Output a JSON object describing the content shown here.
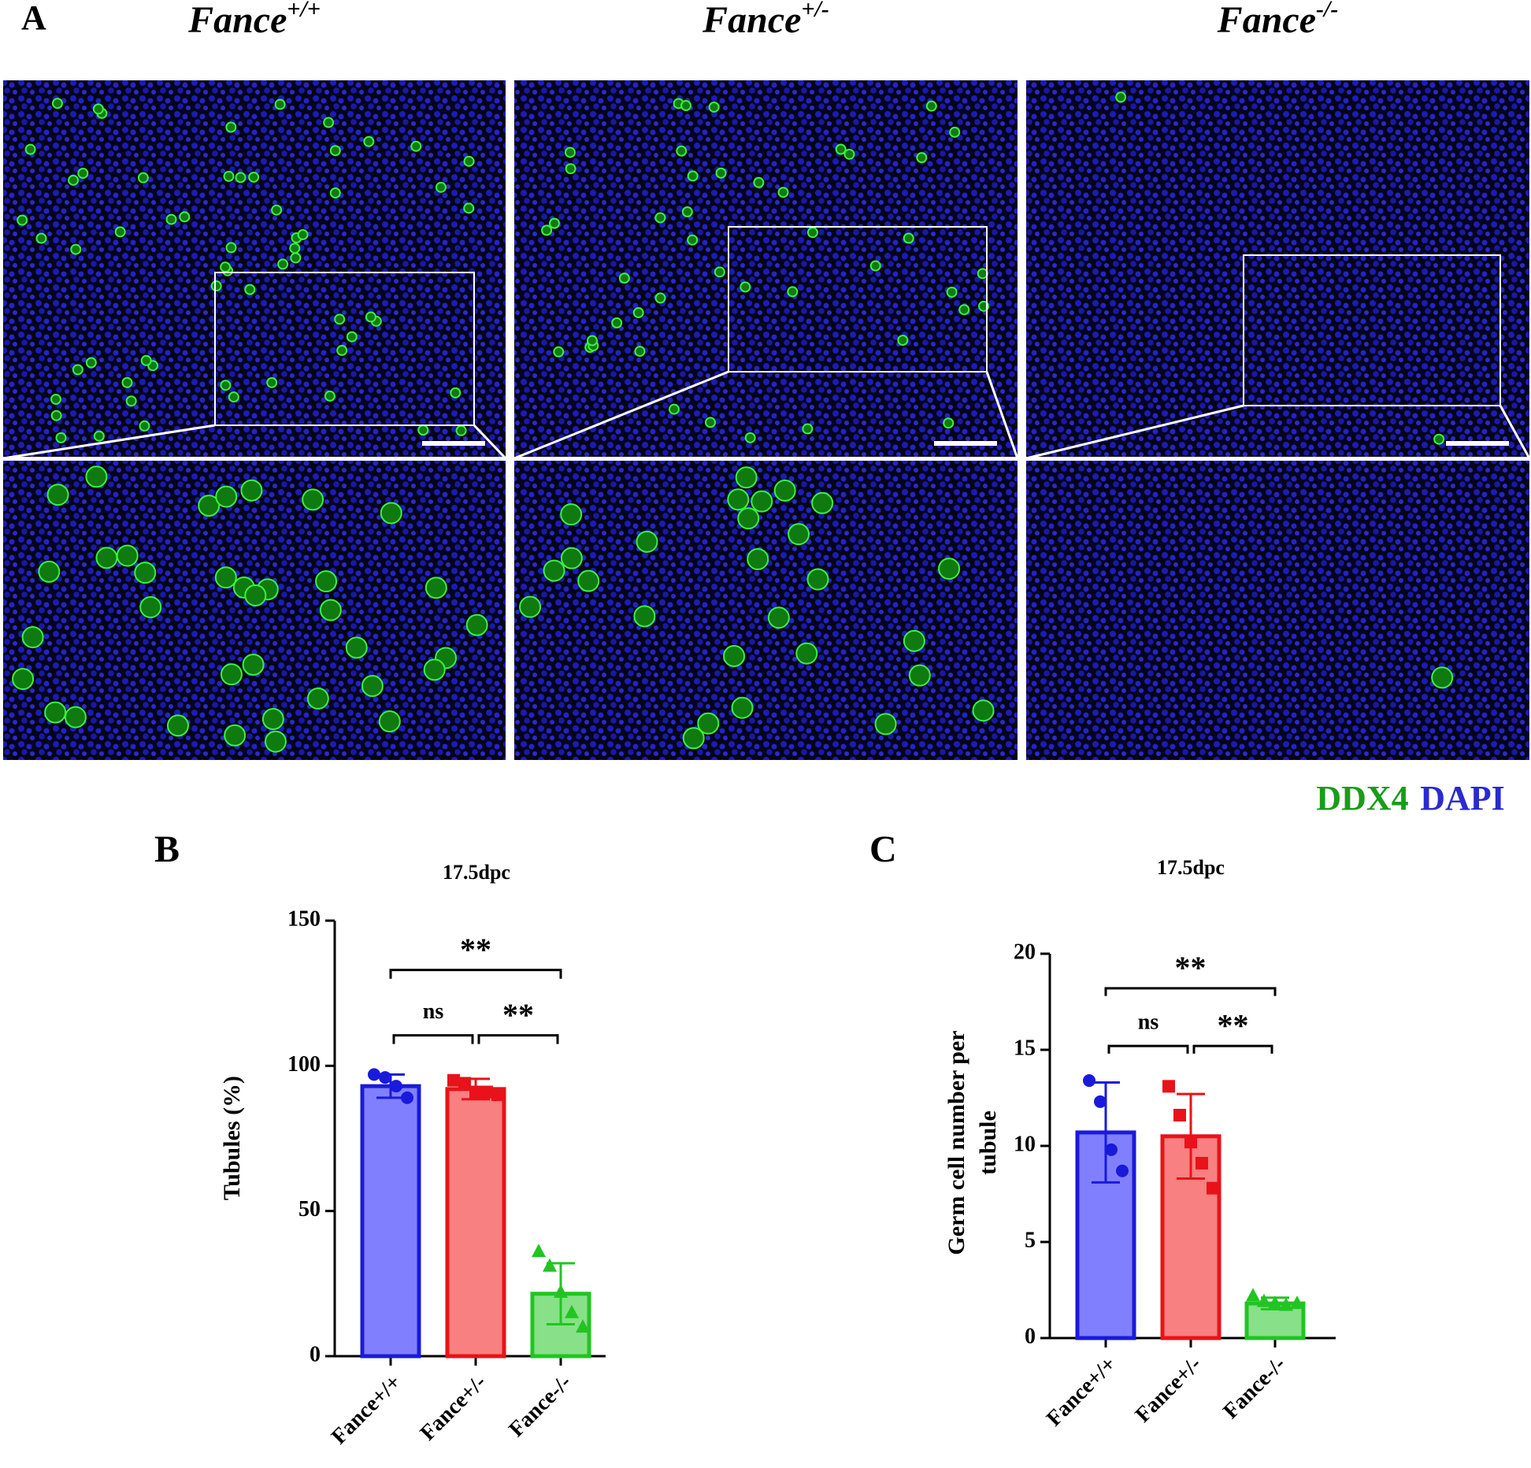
{
  "panel_a": {
    "label": "A",
    "columns": [
      {
        "base": "Fance",
        "sup": "+/+"
      },
      {
        "base": "Fance",
        "sup": "+/-"
      },
      {
        "base": "Fance",
        "sup": "-/-"
      }
    ],
    "legend": [
      {
        "name": "DDX4",
        "color": "#1a9c1a"
      },
      {
        "name": "DAPI",
        "color": "#2a2ad0"
      }
    ]
  },
  "chart_data": [
    {
      "type": "bar",
      "panel_label": "B",
      "title": "17.5dpc",
      "ylabel": "Tubules (%)",
      "categories": [
        "Fance+/+",
        "Fance+/-",
        "Fance-/-"
      ],
      "values": [
        93,
        92,
        21.5
      ],
      "errors": [
        4,
        3.5,
        10.5
      ],
      "points": [
        [
          97,
          96,
          93,
          89
        ],
        [
          95,
          94,
          91,
          91,
          90
        ],
        [
          36,
          31,
          22,
          15,
          10
        ]
      ],
      "markers": [
        "circle",
        "square",
        "triangle"
      ],
      "colors": [
        "#1a1adb",
        "#e8121a",
        "#22c422"
      ],
      "fills": [
        "#8080ff",
        "#f88080",
        "#88e088"
      ],
      "ylim": [
        0,
        150
      ],
      "yticks": [
        0,
        50,
        100,
        150
      ],
      "comparisons": [
        {
          "groups": [
            "Fance+/+",
            "Fance+/-"
          ],
          "label": "ns"
        },
        {
          "groups": [
            "Fance+/-",
            "Fance-/-"
          ],
          "label": "**"
        },
        {
          "groups": [
            "Fance+/+",
            "Fance-/-"
          ],
          "label": "**"
        }
      ]
    },
    {
      "type": "bar",
      "panel_label": "C",
      "title": "17.5dpc",
      "ylabel": "Germ cell number per tubule",
      "categories": [
        "Fance+/+",
        "Fance+/-",
        "Fance-/-"
      ],
      "values": [
        10.7,
        10.5,
        1.8
      ],
      "errors": [
        2.6,
        2.2,
        0.3
      ],
      "points": [
        [
          13.4,
          12.3,
          9.8,
          8.7
        ],
        [
          13.1,
          11.6,
          10.2,
          9.1,
          7.8
        ],
        [
          2.2,
          1.9,
          1.8,
          1.7,
          1.8
        ]
      ],
      "markers": [
        "circle",
        "square",
        "triangle"
      ],
      "colors": [
        "#1a1adb",
        "#e8121a",
        "#22c422"
      ],
      "fills": [
        "#8080ff",
        "#f88080",
        "#88e088"
      ],
      "ylim": [
        0,
        20
      ],
      "yticks": [
        0,
        5,
        10,
        15,
        20
      ],
      "comparisons": [
        {
          "groups": [
            "Fance+/+",
            "Fance+/-"
          ],
          "label": "ns"
        },
        {
          "groups": [
            "Fance+/-",
            "Fance-/-"
          ],
          "label": "**"
        },
        {
          "groups": [
            "Fance+/+",
            "Fance-/-"
          ],
          "label": "**"
        }
      ]
    }
  ]
}
